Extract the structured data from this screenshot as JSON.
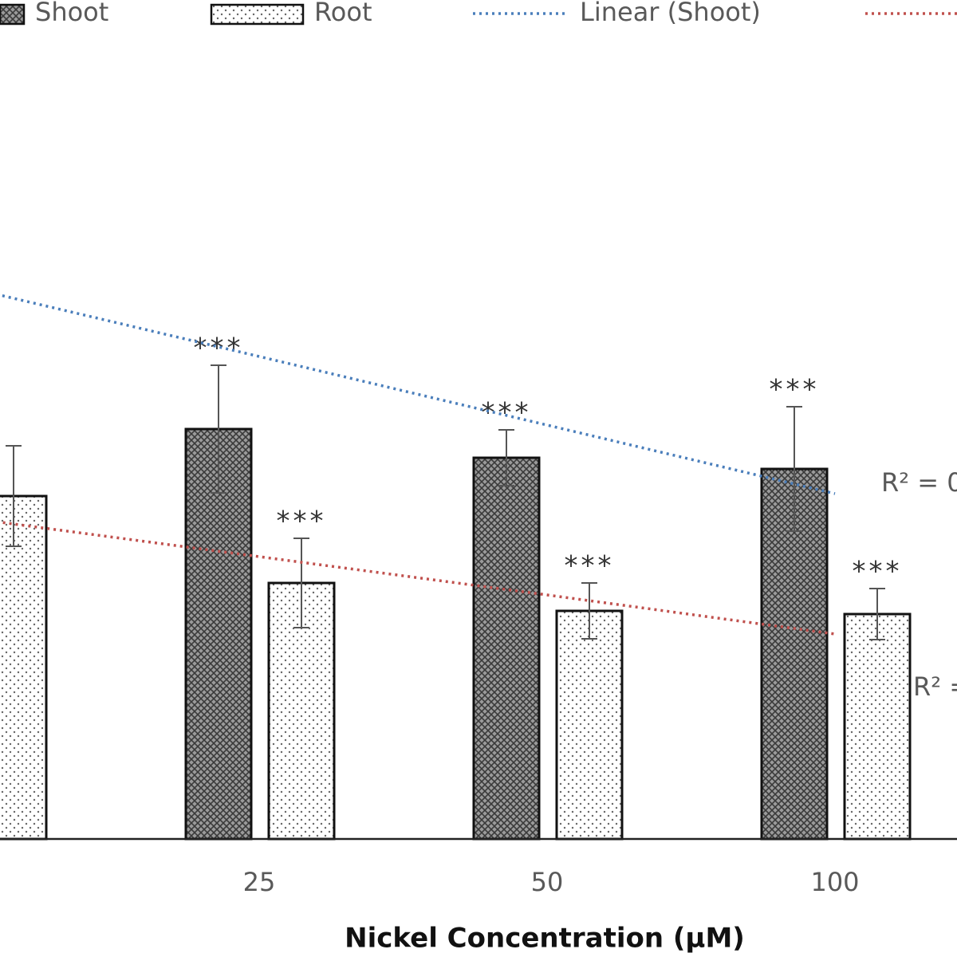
{
  "chart_data": {
    "type": "bar",
    "x_label": "Nickel Concentration (µM)",
    "categories": [
      null,
      "25",
      "50",
      "100"
    ],
    "ylim": [
      0,
      10.52
    ],
    "legend": "top",
    "series": [
      {
        "name": "Shoot",
        "color": "#555555",
        "pattern": "crosshatch",
        "values": [
          null,
          5.14,
          4.78,
          4.64
        ],
        "errors": [
          null,
          0.8,
          0.35,
          0.78
        ],
        "significance": [
          null,
          "***",
          "***",
          "***"
        ]
      },
      {
        "name": "Root",
        "color": "#555555",
        "pattern": "dots",
        "values": [
          4.3,
          3.21,
          2.86,
          2.82
        ],
        "errors": [
          0.63,
          0.56,
          0.35,
          0.32
        ],
        "significance": [
          null,
          "***",
          "***",
          "***"
        ]
      }
    ],
    "trendlines": [
      {
        "name": "Linear (Shoot)",
        "color": "#4a7ebb",
        "values": [
          6.905,
          6.05,
          5.19,
          4.33
        ],
        "r2_label": "R² = 0"
      },
      {
        "name": null,
        "color": "#c0504d",
        "values": [
          4.02,
          3.54,
          3.06,
          2.57
        ],
        "r2_label": "R² ="
      }
    ]
  }
}
